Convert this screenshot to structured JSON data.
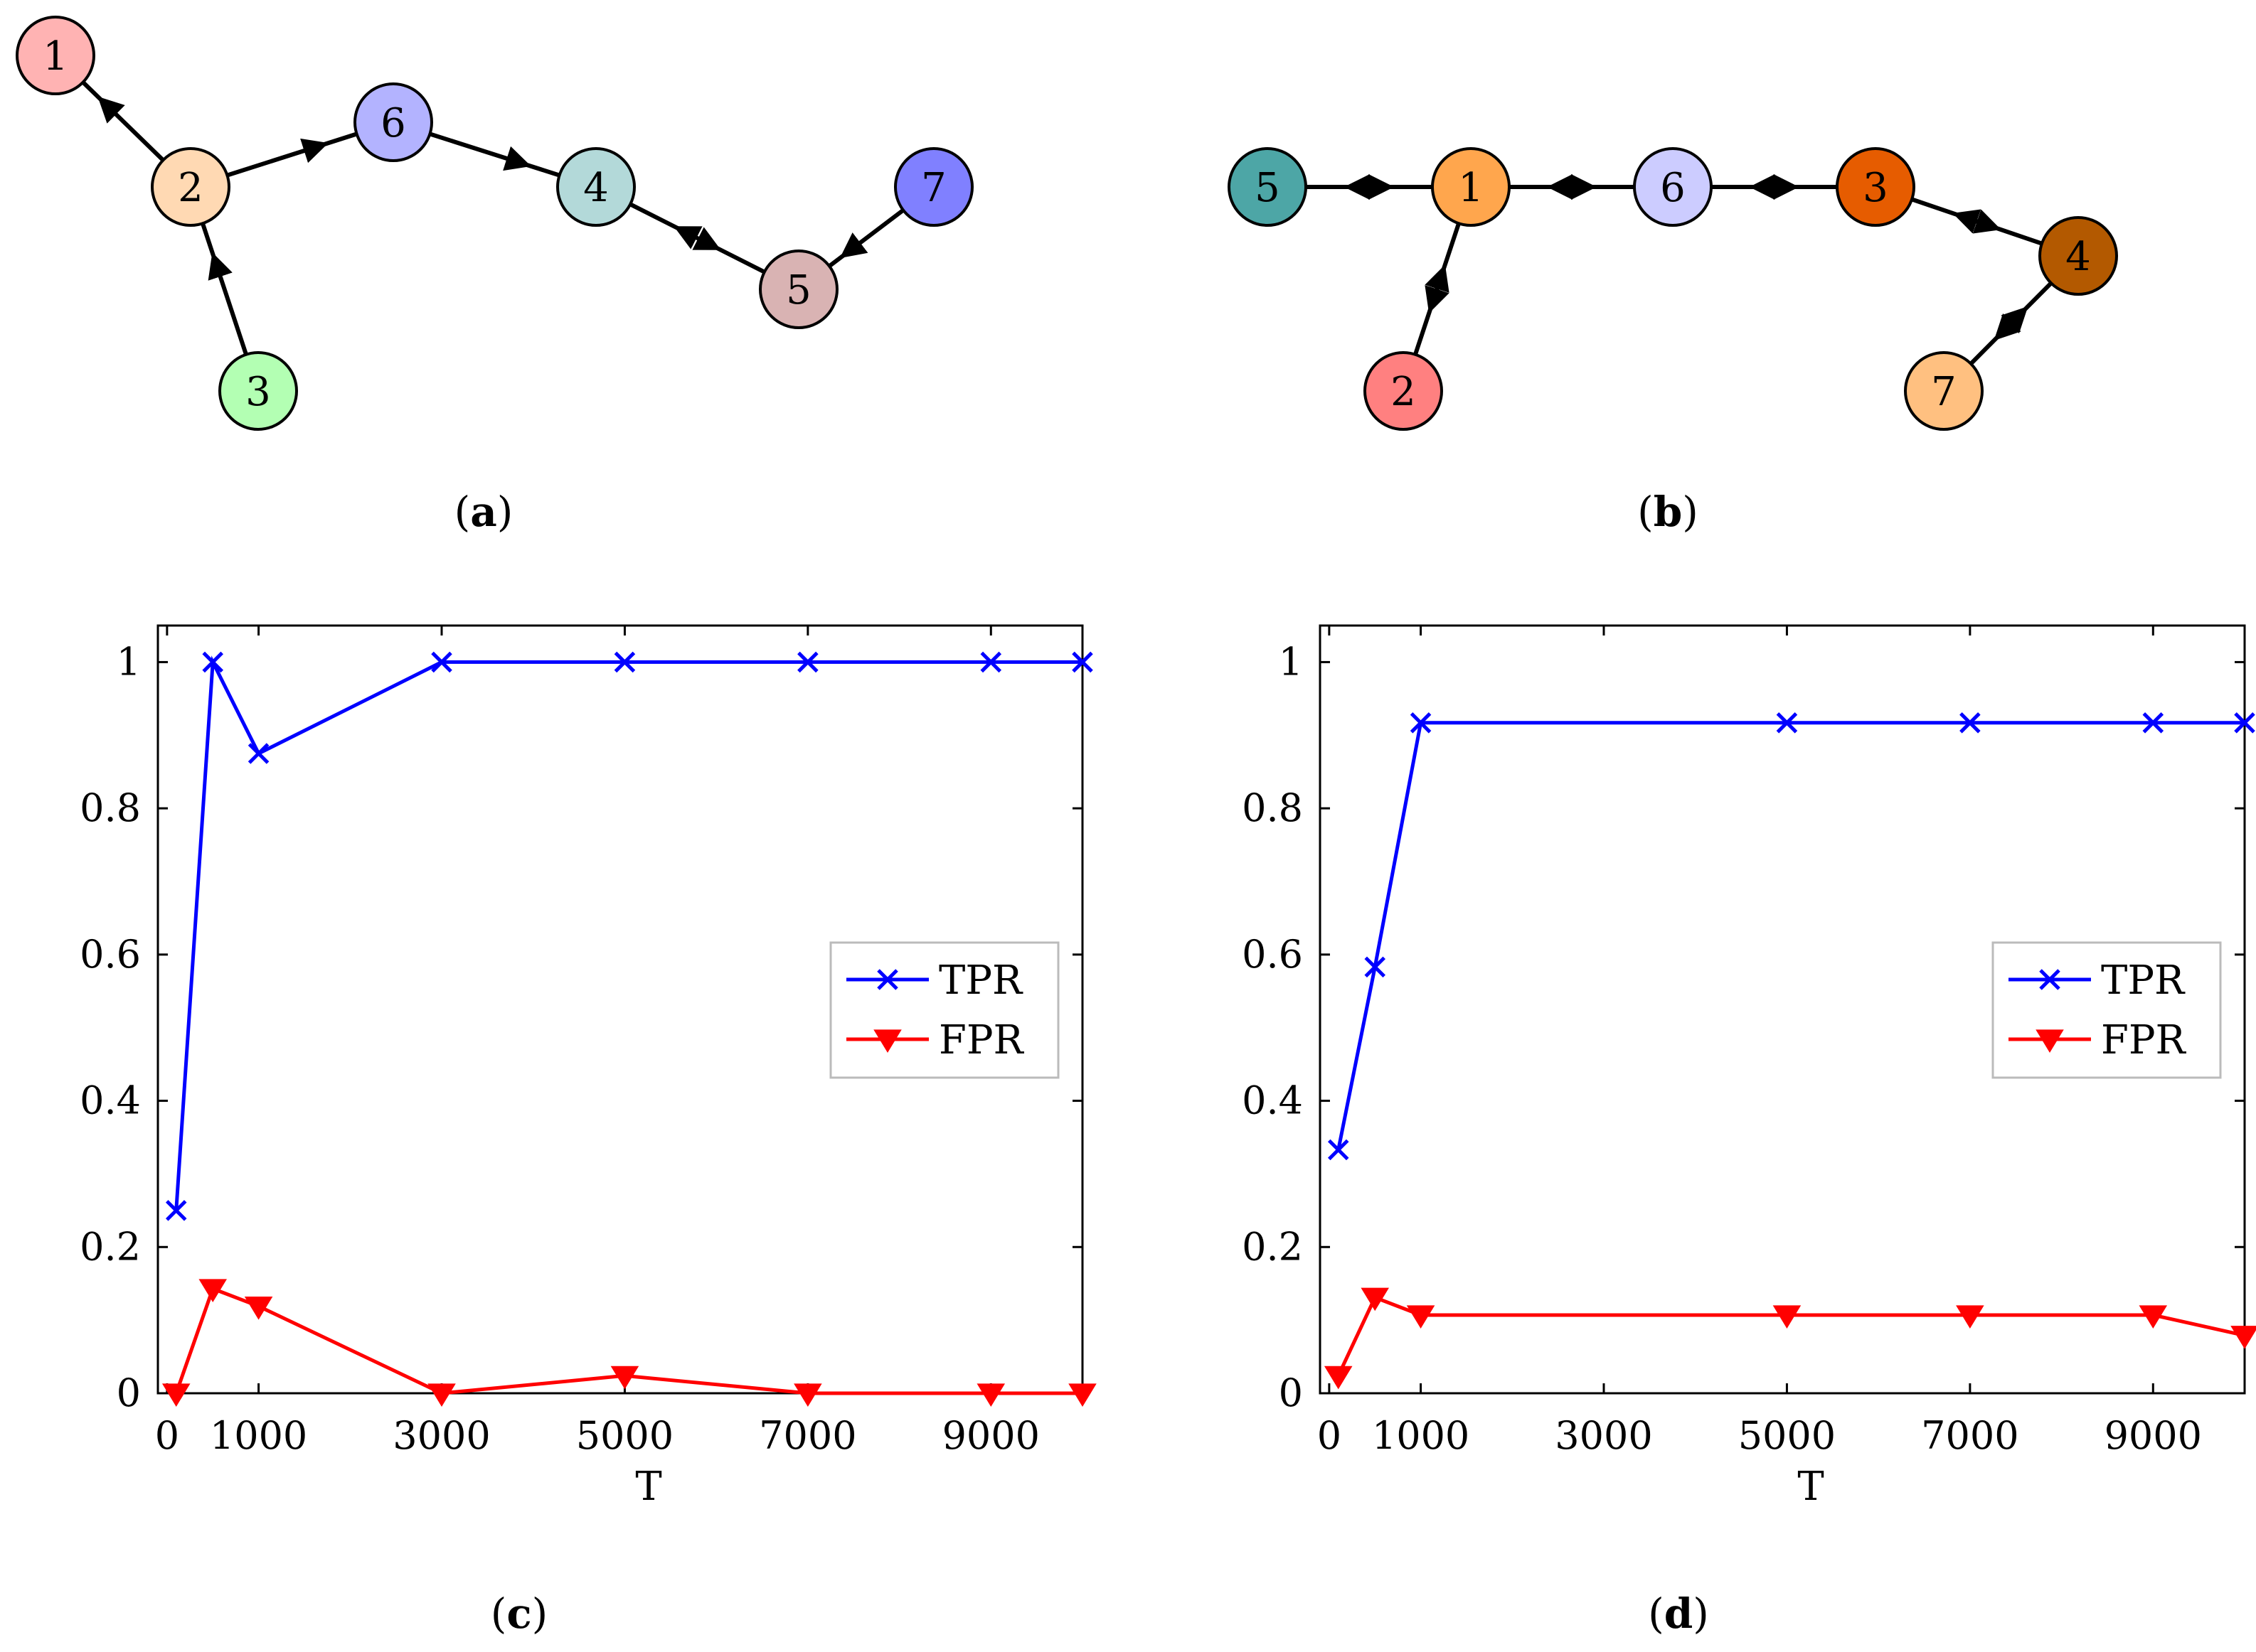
{
  "graphs": [
    {
      "panel": "(a)",
      "nodes": [
        {
          "id": "1",
          "color": "#FFB3B3"
        },
        {
          "id": "2",
          "color": "#FFD9B3"
        },
        {
          "id": "3",
          "color": "#B3FFB3"
        },
        {
          "id": "6",
          "color": "#B3B3FF"
        },
        {
          "id": "4",
          "color": "#B3D9D9"
        },
        {
          "id": "5",
          "color": "#D9B3B3"
        },
        {
          "id": "7",
          "color": "#8080FF"
        }
      ],
      "edges": [
        [
          "2",
          "1"
        ],
        [
          "2",
          "6"
        ],
        [
          "3",
          "2"
        ],
        [
          "6",
          "4"
        ],
        [
          "5",
          "4"
        ],
        [
          "4",
          "5"
        ],
        [
          "7",
          "5"
        ]
      ]
    },
    {
      "panel": "(b)",
      "nodes": [
        {
          "id": "5",
          "color": "#4DA6A6"
        },
        {
          "id": "1",
          "color": "#FFA64D"
        },
        {
          "id": "6",
          "color": "#CCCCFF"
        },
        {
          "id": "3",
          "color": "#E65C00"
        },
        {
          "id": "4",
          "color": "#B35900"
        },
        {
          "id": "2",
          "color": "#FF8080"
        },
        {
          "id": "7",
          "color": "#FFC080"
        }
      ],
      "edges": [
        [
          "5",
          "1"
        ],
        [
          "1",
          "5"
        ],
        [
          "1",
          "6"
        ],
        [
          "6",
          "1"
        ],
        [
          "6",
          "3"
        ],
        [
          "3",
          "6"
        ],
        [
          "3",
          "4"
        ],
        [
          "4",
          "3"
        ],
        [
          "2",
          "1"
        ],
        [
          "1",
          "2"
        ],
        [
          "4",
          "7"
        ],
        [
          "7",
          "4"
        ]
      ]
    }
  ],
  "chart_data": [
    {
      "panel": "(c)",
      "type": "line",
      "xlabel": "T",
      "ylabel": "",
      "xlim": [
        -100,
        10000
      ],
      "ylim": [
        0,
        1.05
      ],
      "xticks": [
        "0",
        "1000",
        "3000",
        "5000",
        "7000",
        "9000"
      ],
      "yticks": [
        "0",
        "0.2",
        "0.4",
        "0.6",
        "0.8",
        "1"
      ],
      "legend": "center-right",
      "series": [
        {
          "name": "TPR",
          "color": "#0000FF",
          "marker": "x",
          "x": [
            100,
            500,
            1000,
            3000,
            5000,
            7000,
            9000,
            10000
          ],
          "y": [
            0.25,
            1.0,
            0.875,
            1.0,
            1.0,
            1.0,
            1.0,
            1.0
          ]
        },
        {
          "name": "FPR",
          "color": "#FF0000",
          "marker": "triangle-down",
          "x": [
            100,
            500,
            1000,
            3000,
            5000,
            7000,
            9000,
            10000
          ],
          "y": [
            0.0,
            0.143,
            0.119,
            0.0,
            0.024,
            0.0,
            0.0,
            0.0
          ]
        }
      ]
    },
    {
      "panel": "(d)",
      "type": "line",
      "xlabel": "T",
      "ylabel": "",
      "xlim": [
        -100,
        10000
      ],
      "ylim": [
        0,
        1.05
      ],
      "xticks": [
        "0",
        "1000",
        "3000",
        "5000",
        "7000",
        "9000"
      ],
      "yticks": [
        "0",
        "0.2",
        "0.4",
        "0.6",
        "0.8",
        "1"
      ],
      "legend": "center-right",
      "series": [
        {
          "name": "TPR",
          "color": "#0000FF",
          "marker": "x",
          "x": [
            100,
            500,
            1000,
            5000,
            7000,
            9000,
            10000
          ],
          "y": [
            0.333,
            0.583,
            0.917,
            0.917,
            0.917,
            0.917,
            0.917
          ]
        },
        {
          "name": "FPR",
          "color": "#FF0000",
          "marker": "triangle-down",
          "x": [
            100,
            500,
            1000,
            5000,
            7000,
            9000,
            10000
          ],
          "y": [
            0.024,
            0.131,
            0.107,
            0.107,
            0.107,
            0.107,
            0.079
          ]
        }
      ]
    }
  ]
}
